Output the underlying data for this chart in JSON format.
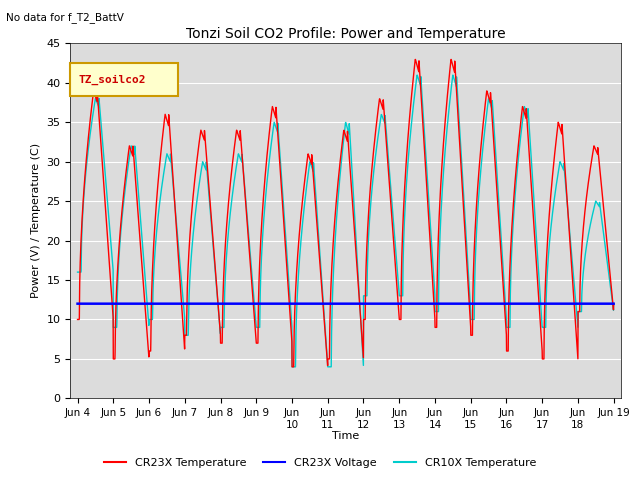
{
  "title": "Tonzi Soil CO2 Profile: Power and Temperature",
  "no_data_label": "No data for f_T2_BattV",
  "ylabel": "Power (V) / Temperature (C)",
  "xlabel": "Time",
  "ylim": [
    0,
    45
  ],
  "background_color": "#dcdcdc",
  "legend_label": "TZ_soilco2",
  "legend_items": [
    "CR23X Temperature",
    "CR23X Voltage",
    "CR10X Temperature"
  ],
  "legend_colors": [
    "#ff0000",
    "#0000ff",
    "#00cccc"
  ],
  "voltage_value": 12.0,
  "cr23x_peaks": [
    39,
    32,
    36,
    34,
    34,
    37,
    31,
    34,
    38,
    43,
    43,
    39,
    37,
    35,
    32
  ],
  "cr23x_troughs": [
    10,
    5,
    6,
    8,
    7,
    7,
    4,
    5,
    10,
    10,
    9,
    8,
    6,
    5,
    11
  ],
  "cr10x_peaks": [
    38,
    32,
    31,
    30,
    31,
    35,
    30,
    35,
    36,
    41,
    41,
    38,
    37,
    30,
    25
  ],
  "cr10x_troughs": [
    16,
    9,
    10,
    8,
    9,
    9,
    4,
    4,
    13,
    13,
    11,
    10,
    9,
    9,
    11
  ]
}
